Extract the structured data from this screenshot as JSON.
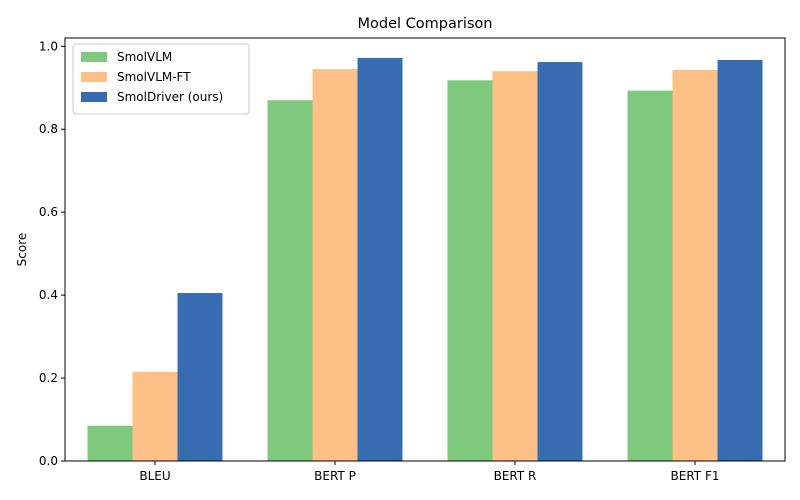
{
  "chart_data": {
    "type": "bar",
    "title": "Model Comparison",
    "xlabel": "",
    "ylabel": "Score",
    "categories": [
      "BLEU",
      "BERT P",
      "BERT R",
      "BERT F1"
    ],
    "ylim": [
      0,
      1.02
    ],
    "yticks": [
      0.0,
      0.2,
      0.4,
      0.6,
      0.8,
      1.0
    ],
    "ytick_labels": [
      "0.0",
      "0.2",
      "0.4",
      "0.6",
      "0.8",
      "1.0"
    ],
    "grid": false,
    "legend_position": "top-left",
    "series": [
      {
        "name": "SmolVLM",
        "color": "#7fc97f",
        "values": [
          0.085,
          0.87,
          0.918,
          0.893
        ]
      },
      {
        "name": "SmolVLM-FT",
        "color": "#fdc086",
        "values": [
          0.215,
          0.945,
          0.94,
          0.943
        ]
      },
      {
        "name": "SmolDriver (ours)",
        "color": "#386cb0",
        "values": [
          0.405,
          0.972,
          0.962,
          0.967
        ]
      }
    ]
  }
}
